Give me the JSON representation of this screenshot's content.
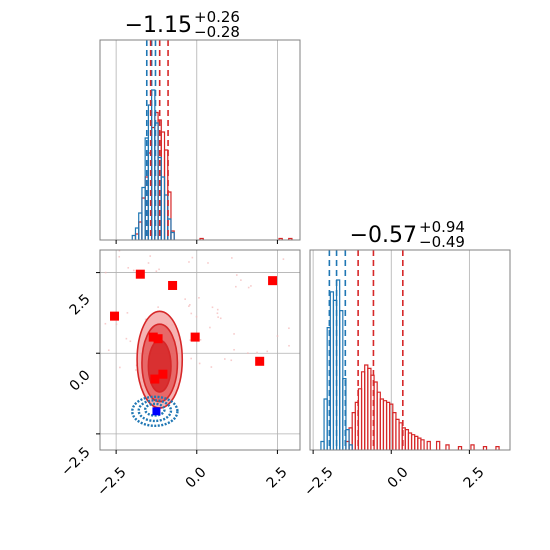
{
  "chart_data": {
    "type": "corner",
    "titles": {
      "p0": {
        "value": "−1.15",
        "upper": "+0.26",
        "lower": "−0.28"
      },
      "p1": {
        "value": "−0.57",
        "upper": "+0.94",
        "lower": "−0.49"
      }
    },
    "x_ticks": [
      "−2.5",
      "0.0",
      "2.5"
    ],
    "y_ticks": [
      "−2.5",
      "0.0",
      "2.5"
    ],
    "ranges": {
      "p0": [
        -3.0,
        3.2
      ],
      "p1": [
        -2.6,
        3.8
      ]
    },
    "colors": {
      "blue": "#1f77b4",
      "red": "#d62728",
      "marker_red": "#ff0000",
      "marker_blue": "#0000ff",
      "grid": "#b0b0b0",
      "axes": "#808080"
    },
    "hist_p0": {
      "blue_x": [
        -1.95,
        -1.85,
        -1.75,
        -1.65,
        -1.55,
        -1.45,
        -1.35,
        -1.25,
        -1.15,
        -1.05,
        -0.95,
        -0.85,
        -0.75
      ],
      "blue_h": [
        0.03,
        0.08,
        0.18,
        0.35,
        0.68,
        0.9,
        1.0,
        0.78,
        0.55,
        0.42,
        0.3,
        0.14,
        0.05
      ],
      "red_x": [
        -1.85,
        -1.75,
        -1.65,
        -1.55,
        -1.45,
        -1.35,
        -1.25,
        -1.15,
        -1.05,
        -0.95,
        -0.85,
        -0.75,
        0.15,
        2.6,
        2.9
      ],
      "red_h": [
        0.04,
        0.12,
        0.28,
        0.42,
        0.58,
        0.75,
        0.85,
        0.8,
        0.72,
        0.6,
        0.32,
        0.06,
        0.01,
        0.01,
        0.01
      ],
      "blue_q": [
        -1.55,
        -1.4,
        -1.28
      ],
      "red_q": [
        -1.43,
        -1.15,
        -0.89
      ]
    },
    "hist_p1": {
      "blue_x": [
        -2.2,
        -2.1,
        -2.0,
        -1.9,
        -1.8,
        -1.7,
        -1.6,
        -1.5,
        -1.4,
        -1.3
      ],
      "blue_h": [
        0.05,
        0.3,
        0.72,
        0.93,
        0.88,
        1.0,
        0.82,
        0.42,
        0.12,
        0.03
      ],
      "red_x": [
        -1.4,
        -1.3,
        -1.2,
        -1.1,
        -1.0,
        -0.9,
        -0.8,
        -0.7,
        -0.6,
        -0.5,
        -0.4,
        -0.3,
        -0.2,
        -0.1,
        0.0,
        0.1,
        0.2,
        0.3,
        0.4,
        0.5,
        0.6,
        0.7,
        0.8,
        0.9,
        1.0,
        1.2,
        1.5,
        1.8,
        2.2,
        2.6,
        3.0,
        3.4
      ],
      "red_h": [
        0.05,
        0.13,
        0.22,
        0.28,
        0.36,
        0.46,
        0.5,
        0.48,
        0.44,
        0.4,
        0.34,
        0.3,
        0.29,
        0.28,
        0.27,
        0.22,
        0.18,
        0.16,
        0.13,
        0.12,
        0.1,
        0.09,
        0.08,
        0.07,
        0.06,
        0.05,
        0.05,
        0.03,
        0.02,
        0.03,
        0.02,
        0.02
      ],
      "blue_q": [
        -1.98,
        -1.75,
        -1.47
      ],
      "red_q": [
        -1.06,
        -0.57,
        0.37
      ]
    },
    "scatter": {
      "red_markers": [
        [
          -1.75,
          2.45
        ],
        [
          -0.75,
          2.1
        ],
        [
          2.35,
          2.25
        ],
        [
          -2.55,
          1.15
        ],
        [
          -1.35,
          0.5
        ],
        [
          -1.2,
          0.45
        ],
        [
          -0.05,
          0.5
        ],
        [
          1.95,
          -0.25
        ],
        [
          -1.05,
          -0.65
        ],
        [
          -1.3,
          -0.8
        ]
      ],
      "blue_marker": [
        -1.25,
        -1.8
      ],
      "red_contours": [
        {
          "cx": -1.15,
          "cy": -0.2,
          "rx": 0.7,
          "ry": 1.5
        },
        {
          "cx": -1.15,
          "cy": -0.3,
          "rx": 0.55,
          "ry": 1.2
        },
        {
          "cx": -1.15,
          "cy": -0.4,
          "rx": 0.35,
          "ry": 0.8
        }
      ],
      "blue_contours": [
        {
          "cx": -1.3,
          "cy": -1.8,
          "rx": 0.7,
          "ry": 0.45
        },
        {
          "cx": -1.3,
          "cy": -1.78,
          "rx": 0.5,
          "ry": 0.32
        },
        {
          "cx": -1.3,
          "cy": -1.75,
          "rx": 0.3,
          "ry": 0.18
        }
      ]
    }
  }
}
